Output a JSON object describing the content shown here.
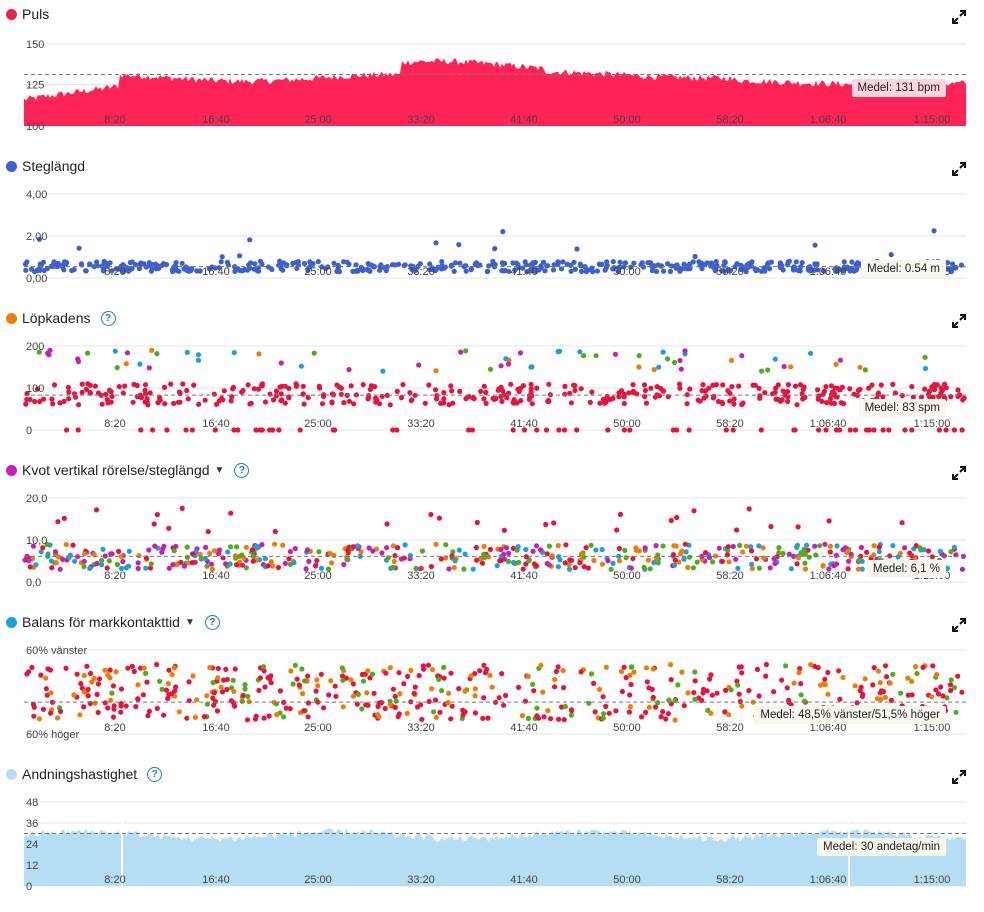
{
  "panels": [
    {
      "id": "puls",
      "title": "Puls",
      "dot_color": "#e8234a",
      "has_caret": false,
      "has_help": false,
      "mean_label": "Medel: 131 bpm"
    },
    {
      "id": "steglangd",
      "title": "Steglängd",
      "dot_color": "#3b5fd4",
      "has_caret": false,
      "has_help": false,
      "mean_label": "Medel: 0.54 m"
    },
    {
      "id": "lopkadens",
      "title": "Löpkadens",
      "dot_color": "#ee7d00",
      "has_caret": false,
      "has_help": true,
      "mean_label": "Medel: 83 spm"
    },
    {
      "id": "kvot",
      "title": "Kvot vertikal rörelse/steglängd",
      "dot_color": "#c71fb6",
      "has_caret": true,
      "has_help": true,
      "mean_label": "Medel: 6,1 %"
    },
    {
      "id": "balans",
      "title": "Balans för markkontakttid",
      "dot_color": "#1a9fe0",
      "has_caret": true,
      "has_help": true,
      "mean_label": "Medel: 48,5% vänster/51,5% höger"
    },
    {
      "id": "andning",
      "title": "Andningshastighet",
      "dot_color": "#b5def5",
      "has_caret": false,
      "has_help": true,
      "mean_label": "Medel: 30 andetag/min"
    }
  ],
  "x_ticks": [
    "8:20",
    "16:40",
    "25:00",
    "33:20",
    "41:40",
    "50:00",
    "58:20",
    "1:06:40",
    "1:15:00"
  ],
  "chart_data": [
    {
      "type": "area",
      "series": [
        {
          "name": "Puls",
          "color": "#ff2455"
        }
      ],
      "y_ticks": [
        "150",
        "125",
        "100"
      ],
      "ylim": [
        100,
        150
      ],
      "mean": 131,
      "x_ticks": [
        "8:20",
        "16:40",
        "25:00",
        "33:20",
        "41:40",
        "50:00",
        "58:20",
        "1:06:40",
        "1:15:00"
      ],
      "xlim_seconds": [
        0,
        4560
      ]
    },
    {
      "type": "scatter",
      "series": [
        {
          "name": "Steglängd",
          "color": "#3b5fd4"
        }
      ],
      "y_ticks": [
        "4,00",
        "2,00",
        "0,00"
      ],
      "ylim": [
        0,
        4
      ],
      "mean": 0.54,
      "x_ticks": [
        "8:20",
        "16:40",
        "25:00",
        "33:20",
        "41:40",
        "50:00",
        "58:20",
        "1:06:40",
        "1:15:00"
      ]
    },
    {
      "type": "scatter",
      "series": [
        {
          "name": "Löpkadens",
          "colors": [
            "#e8123c",
            "#ee7d00",
            "#4caf1a",
            "#1a9fe0",
            "#c71fb6"
          ]
        }
      ],
      "y_ticks": [
        "200",
        "100",
        "0"
      ],
      "ylim": [
        0,
        200
      ],
      "mean": 83,
      "x_ticks": [
        "8:20",
        "16:40",
        "25:00",
        "33:20",
        "41:40",
        "50:00",
        "58:20",
        "1:06:40",
        "1:15:00"
      ]
    },
    {
      "type": "scatter",
      "series": [
        {
          "name": "Kvot vertikal rörelse/steglängd",
          "colors": [
            "#c71fb6",
            "#1a9fe0",
            "#4caf1a",
            "#ee7d00",
            "#e8123c"
          ]
        }
      ],
      "y_ticks": [
        "20,0",
        "10,0",
        "0,0"
      ],
      "ylim": [
        0,
        20
      ],
      "mean": 6.1,
      "x_ticks": [
        "8:20",
        "16:40",
        "25:00",
        "33:20",
        "41:40",
        "50:00",
        "58:20",
        "1:06:40",
        "1:15:00"
      ]
    },
    {
      "type": "scatter",
      "series": [
        {
          "name": "Balans för markkontakttid",
          "colors": [
            "#e8123c",
            "#ee7d00",
            "#4caf1a"
          ]
        }
      ],
      "y_ticks": [
        "60% vänster",
        "60% höger"
      ],
      "ylim": [
        -60,
        60
      ],
      "mean": 48.5,
      "x_ticks": [
        "8:20",
        "16:40",
        "25:00",
        "33:20",
        "41:40",
        "50:00",
        "58:20",
        "1:06:40",
        "1:15:00"
      ]
    },
    {
      "type": "area",
      "series": [
        {
          "name": "Andningshastighet",
          "color": "#b5def5"
        }
      ],
      "y_ticks": [
        "48",
        "36",
        "24",
        "12",
        "0"
      ],
      "ylim": [
        0,
        48
      ],
      "mean": 30,
      "x_ticks": [
        "8:20",
        "16:40",
        "25:00",
        "33:20",
        "41:40",
        "50:00",
        "58:20",
        "1:06:40",
        "1:15:00"
      ]
    }
  ]
}
